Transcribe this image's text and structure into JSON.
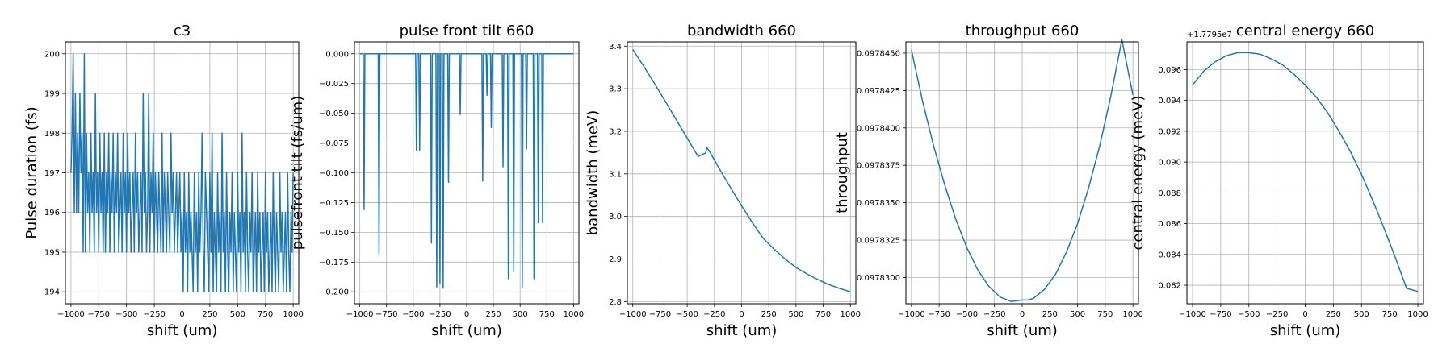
{
  "chart_data": [
    {
      "type": "line",
      "title": "c3",
      "xlabel": "shift (um)",
      "ylabel": "Pulse duration (fs)",
      "xlim": [
        -1050,
        1050
      ],
      "ylim": [
        193.7,
        200.3
      ],
      "xticks": [
        -1000,
        -750,
        -500,
        -250,
        0,
        250,
        500,
        750,
        1000
      ],
      "xtick_labels": [
        "−1000",
        "−750",
        "−500",
        "−250",
        "0",
        "250",
        "500",
        "750",
        "1000"
      ],
      "yticks": [
        194,
        195,
        196,
        197,
        198,
        199,
        200
      ],
      "ytick_labels": [
        "194",
        "195",
        "196",
        "197",
        "198",
        "199",
        "200"
      ],
      "grid": true,
      "color": "#1f77b4",
      "series": [
        {
          "x": [
            -1000,
            -990,
            -980,
            -970,
            -960,
            -950,
            -940,
            -930,
            -920,
            -910,
            -900,
            -890,
            -880,
            -870,
            -860,
            -850,
            -840,
            -830,
            -820,
            -810,
            -800,
            -790,
            -780,
            -770,
            -760,
            -750,
            -740,
            -730,
            -720,
            -710,
            -700,
            -690,
            -680,
            -670,
            -660,
            -650,
            -640,
            -630,
            -620,
            -610,
            -600,
            -590,
            -580,
            -570,
            -560,
            -550,
            -540,
            -530,
            -520,
            -510,
            -500,
            -490,
            -480,
            -470,
            -460,
            -450,
            -440,
            -430,
            -420,
            -410,
            -400,
            -390,
            -380,
            -370,
            -360,
            -350,
            -340,
            -330,
            -320,
            -310,
            -300,
            -290,
            -280,
            -270,
            -260,
            -250,
            -240,
            -230,
            -220,
            -210,
            -200,
            -190,
            -180,
            -170,
            -160,
            -150,
            -140,
            -130,
            -120,
            -110,
            -100,
            -90,
            -80,
            -70,
            -60,
            -50,
            -40,
            -30,
            -20,
            -10,
            0,
            10,
            20,
            30,
            40,
            50,
            60,
            70,
            80,
            90,
            100,
            110,
            120,
            130,
            140,
            150,
            160,
            170,
            180,
            190,
            200,
            210,
            220,
            230,
            240,
            250,
            260,
            270,
            280,
            290,
            300,
            310,
            320,
            330,
            340,
            350,
            360,
            370,
            380,
            390,
            400,
            410,
            420,
            430,
            440,
            450,
            460,
            470,
            480,
            490,
            500,
            510,
            520,
            530,
            540,
            550,
            560,
            570,
            580,
            590,
            600,
            610,
            620,
            630,
            640,
            650,
            660,
            670,
            680,
            690,
            700,
            710,
            720,
            730,
            740,
            750,
            760,
            770,
            780,
            790,
            800,
            810,
            820,
            830,
            840,
            850,
            860,
            870,
            880,
            890,
            900,
            910,
            920,
            930,
            940,
            950,
            960,
            970,
            980,
            990,
            1000
          ],
          "y": [
            197,
            198,
            200,
            196,
            199,
            196,
            198,
            196,
            199,
            197,
            198,
            195,
            200,
            195,
            198,
            196,
            197,
            195,
            198,
            196,
            197,
            195,
            199,
            196,
            197,
            195,
            198,
            196,
            197,
            195,
            198,
            195,
            197,
            196,
            198,
            195,
            197,
            196,
            198,
            195,
            197,
            196,
            198,
            195,
            196,
            197,
            195,
            198,
            196,
            197,
            195,
            198,
            196,
            197,
            195,
            196,
            197,
            195,
            198,
            196,
            197,
            195,
            196,
            197,
            195,
            199,
            196,
            197,
            195,
            196,
            199,
            195,
            197,
            196,
            198,
            195,
            197,
            196,
            195,
            197,
            196,
            195,
            198,
            195,
            197,
            196,
            195,
            197,
            196,
            195,
            198,
            196,
            197,
            195,
            196,
            197,
            195,
            196,
            197,
            195,
            196,
            194,
            197,
            195,
            196,
            194,
            197,
            195,
            196,
            195,
            194,
            197,
            195,
            196,
            194,
            197,
            195,
            196,
            198,
            195,
            194,
            197,
            196,
            195,
            194,
            197,
            195,
            198,
            194,
            196,
            195,
            194,
            197,
            195,
            196,
            194,
            198,
            195,
            196,
            194,
            197,
            195,
            194,
            196,
            195,
            197,
            194,
            196,
            195,
            194,
            197,
            195,
            196,
            194,
            198,
            195,
            196,
            194,
            197,
            195,
            194,
            196,
            195,
            197,
            194,
            195,
            196,
            194,
            197,
            195,
            196,
            194,
            195,
            196,
            194,
            197,
            195,
            196,
            194,
            195,
            196,
            194,
            197,
            195,
            194,
            196,
            195,
            194,
            197,
            195,
            196,
            194,
            195,
            196,
            194,
            197,
            195,
            194,
            196,
            195,
            197
          ]
        }
      ]
    },
    {
      "type": "line",
      "title": "pulse front tilt 660",
      "xlabel": "shift (um)",
      "ylabel": "pulsefront tilt (fs/um)",
      "xlim": [
        -1050,
        1050
      ],
      "ylim": [
        -0.21,
        0.01
      ],
      "xticks": [
        -1000,
        -750,
        -500,
        -250,
        0,
        250,
        500,
        750,
        1000
      ],
      "xtick_labels": [
        "−1000",
        "−750",
        "−500",
        "−250",
        "0",
        "250",
        "500",
        "750",
        "1000"
      ],
      "yticks": [
        0.0,
        -0.025,
        -0.05,
        -0.075,
        -0.1,
        -0.125,
        -0.15,
        -0.175,
        -0.2
      ],
      "ytick_labels": [
        "0.000",
        "−0.025",
        "−0.050",
        "−0.075",
        "−0.100",
        "−0.125",
        "−0.150",
        "−0.175",
        "−0.200"
      ],
      "grid": true,
      "color": "#1f77b4",
      "spikes": [
        {
          "x": -960,
          "y": -0.131
        },
        {
          "x": -820,
          "y": -0.168
        },
        {
          "x": -470,
          "y": -0.081
        },
        {
          "x": -440,
          "y": -0.081
        },
        {
          "x": -330,
          "y": -0.159
        },
        {
          "x": -280,
          "y": -0.196
        },
        {
          "x": -250,
          "y": -0.193
        },
        {
          "x": -220,
          "y": -0.197
        },
        {
          "x": -170,
          "y": -0.108
        },
        {
          "x": -60,
          "y": -0.051
        },
        {
          "x": 150,
          "y": -0.107
        },
        {
          "x": 190,
          "y": -0.035
        },
        {
          "x": 230,
          "y": -0.062
        },
        {
          "x": 340,
          "y": -0.095
        },
        {
          "x": 390,
          "y": -0.189
        },
        {
          "x": 440,
          "y": -0.183
        },
        {
          "x": 520,
          "y": -0.196
        },
        {
          "x": 560,
          "y": -0.08
        },
        {
          "x": 630,
          "y": -0.189
        },
        {
          "x": 670,
          "y": -0.142
        },
        {
          "x": 710,
          "y": -0.142
        }
      ]
    },
    {
      "type": "line",
      "title": "bandwidth 660",
      "xlabel": "shift (um)",
      "ylabel": "bandwidth (meV)",
      "xlim": [
        -1050,
        1050
      ],
      "ylim": [
        2.795,
        3.41
      ],
      "xticks": [
        -1000,
        -750,
        -500,
        -250,
        0,
        250,
        500,
        750,
        1000
      ],
      "xtick_labels": [
        "−1000",
        "−750",
        "−500",
        "−250",
        "0",
        "250",
        "500",
        "750",
        "1000"
      ],
      "yticks": [
        2.8,
        2.9,
        3.0,
        3.1,
        3.2,
        3.3,
        3.4
      ],
      "ytick_labels": [
        "2.8",
        "2.9",
        "3.0",
        "3.1",
        "3.2",
        "3.3",
        "3.4"
      ],
      "grid": true,
      "color": "#1f77b4",
      "series": [
        {
          "x": [
            -1000,
            -900,
            -800,
            -700,
            -600,
            -500,
            -400,
            -330,
            -320,
            -300,
            -200,
            -100,
            0,
            100,
            200,
            300,
            400,
            500,
            600,
            700,
            800,
            900,
            1000
          ],
          "y": [
            3.392,
            3.353,
            3.312,
            3.27,
            3.227,
            3.184,
            3.141,
            3.149,
            3.162,
            3.155,
            3.11,
            3.067,
            3.025,
            2.985,
            2.948,
            2.923,
            2.9,
            2.88,
            2.865,
            2.852,
            2.84,
            2.831,
            2.823
          ]
        }
      ]
    },
    {
      "type": "line",
      "title": "throughput 660",
      "xlabel": "shift (um)",
      "ylabel": "throughput",
      "xlim": [
        -1050,
        1050
      ],
      "ylim": [
        0.09782825,
        0.09784575
      ],
      "xticks": [
        -1000,
        -750,
        -500,
        -250,
        0,
        250,
        500,
        750,
        1000
      ],
      "xtick_labels": [
        "−1000",
        "−750",
        "−500",
        "−250",
        "0",
        "250",
        "500",
        "750",
        "1000"
      ],
      "yticks": [
        0.09783,
        0.0978325,
        0.097835,
        0.0978375,
        0.09784,
        0.0978425,
        0.097845
      ],
      "ytick_labels": [
        "0.0978300",
        "0.0978325",
        "0.0978350",
        "0.0978375",
        "0.0978400",
        "0.0978425",
        "0.0978450"
      ],
      "grid": true,
      "color": "#1f77b4",
      "series": [
        {
          "x": [
            -1000,
            -900,
            -800,
            -700,
            -600,
            -500,
            -400,
            -300,
            -200,
            -100,
            0,
            50,
            100,
            200,
            300,
            400,
            500,
            600,
            700,
            800,
            900,
            1000
          ],
          "y": [
            0.0978452,
            0.0978418,
            0.0978388,
            0.0978362,
            0.0978339,
            0.097832,
            0.0978305,
            0.0978294,
            0.0978287,
            0.0978284,
            0.0978285,
            0.0978285,
            0.0978286,
            0.0978292,
            0.0978302,
            0.0978317,
            0.0978336,
            0.097836,
            0.0978388,
            0.0978421,
            0.0978459,
            0.0978422
          ]
        }
      ]
    },
    {
      "type": "line",
      "title": "central energy 660",
      "xlabel": "shift (um)",
      "ylabel": "central energy (meV)",
      "offset_text": "+1.7795e7",
      "xlim": [
        -1050,
        1050
      ],
      "ylim": [
        0.0808,
        0.0978
      ],
      "xticks": [
        -1000,
        -750,
        -500,
        -250,
        0,
        250,
        500,
        750,
        1000
      ],
      "xtick_labels": [
        "−1000",
        "−750",
        "−500",
        "−250",
        "0",
        "250",
        "500",
        "750",
        "1000"
      ],
      "yticks": [
        0.082,
        0.084,
        0.086,
        0.088,
        0.09,
        0.092,
        0.094,
        0.096
      ],
      "ytick_labels": [
        "0.082",
        "0.084",
        "0.086",
        "0.088",
        "0.090",
        "0.092",
        "0.094",
        "0.096"
      ],
      "grid": true,
      "color": "#1f77b4",
      "series": [
        {
          "x": [
            -1000,
            -900,
            -800,
            -700,
            -600,
            -500,
            -400,
            -300,
            -200,
            -100,
            0,
            100,
            200,
            300,
            400,
            500,
            600,
            700,
            800,
            900,
            1000
          ],
          "y": [
            0.095,
            0.0959,
            0.0965,
            0.0969,
            0.0971,
            0.0971,
            0.097,
            0.0967,
            0.0963,
            0.0957,
            0.095,
            0.0942,
            0.0932,
            0.092,
            0.0907,
            0.0892,
            0.0875,
            0.0857,
            0.0838,
            0.0818,
            0.0816
          ]
        }
      ]
    }
  ]
}
